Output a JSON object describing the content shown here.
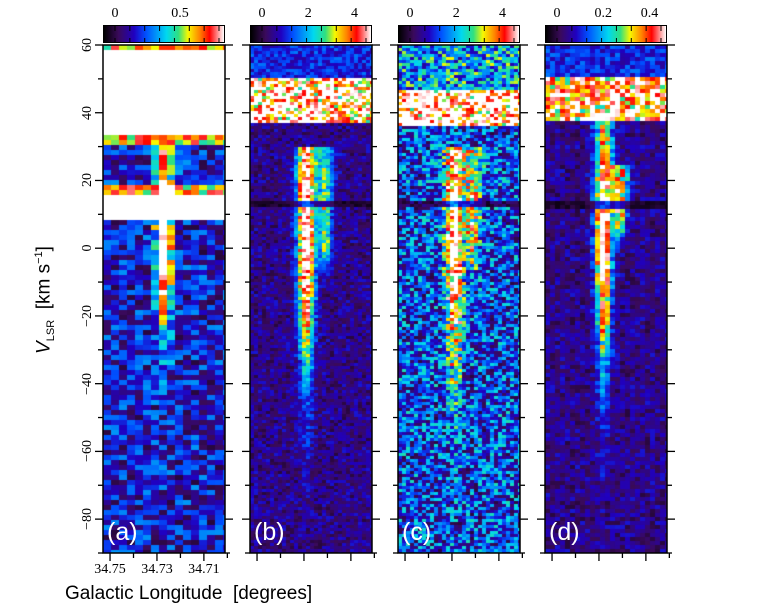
{
  "chart_data": {
    "type": "heatmap",
    "xlabel": "Galactic Longitude  [degrees]",
    "ylabel": "V",
    "ylabel_sub": "LSR",
    "ylabel_units": "[km s",
    "ylabel_exp": "−1",
    "ylabel_close": "]",
    "ylim": [
      -90,
      60
    ],
    "yticks": [
      "60",
      "40",
      "20",
      "0",
      "−20",
      "−40",
      "−60",
      "−80"
    ],
    "ytick_values": [
      60,
      40,
      20,
      0,
      -20,
      -40,
      -60,
      -80
    ],
    "xlim": [
      34.753,
      34.701
    ],
    "xticks": [
      "34.75",
      "34.73",
      "34.71"
    ],
    "xtick_values": [
      34.75,
      34.73,
      34.71
    ],
    "panels": [
      {
        "label": "(a)",
        "colorbar_ticks": [
          "0",
          "0.5"
        ],
        "colorbar_tick_values": [
          0,
          0.5
        ],
        "vmax": 0.8,
        "ridges": [
          {
            "l": 34.727,
            "vtop": 30,
            "vbot": -60,
            "peak": 0.7
          }
        ],
        "saturated_bands": [
          [
            34,
            58
          ],
          [
            8,
            15
          ]
        ],
        "noise": 0.18
      },
      {
        "label": "(b)",
        "colorbar_ticks": [
          "0",
          "2",
          "4"
        ],
        "colorbar_tick_values": [
          0,
          2,
          4
        ],
        "vmax": 4.5,
        "ridges": [
          {
            "l": 34.729,
            "vtop": 30,
            "vbot": -75,
            "peak": 4.3
          },
          {
            "l": 34.721,
            "vtop": 30,
            "vbot": 0,
            "peak": 2.0
          }
        ],
        "foreground_band": [
          37,
          50
        ],
        "absorption_v": 13,
        "noise": 0.1
      },
      {
        "label": "(c)",
        "colorbar_ticks": [
          "0",
          "2",
          "4"
        ],
        "colorbar_tick_values": [
          0,
          2,
          4
        ],
        "vmax": 4.5,
        "ridges": [
          {
            "l": 34.729,
            "vtop": 30,
            "vbot": -70,
            "peak": 3.6
          },
          {
            "l": 34.721,
            "vtop": 30,
            "vbot": 0,
            "peak": 1.8
          }
        ],
        "foreground_band": [
          36,
          47
        ],
        "absorption_v": 13,
        "noise": 0.25
      },
      {
        "label": "(d)",
        "colorbar_ticks": [
          "0",
          "0.2",
          "0.4"
        ],
        "colorbar_tick_values": [
          0,
          0.2,
          0.4
        ],
        "vmax": 0.45,
        "ridges": [
          {
            "l": 34.728,
            "vtop": 40,
            "vbot": -70,
            "peak": 0.38
          },
          {
            "l": 34.721,
            "vtop": 25,
            "vbot": 10,
            "peak": 0.3
          }
        ],
        "foreground_band": [
          38,
          50
        ],
        "absorption_v": 13,
        "noise": 0.1
      }
    ]
  }
}
